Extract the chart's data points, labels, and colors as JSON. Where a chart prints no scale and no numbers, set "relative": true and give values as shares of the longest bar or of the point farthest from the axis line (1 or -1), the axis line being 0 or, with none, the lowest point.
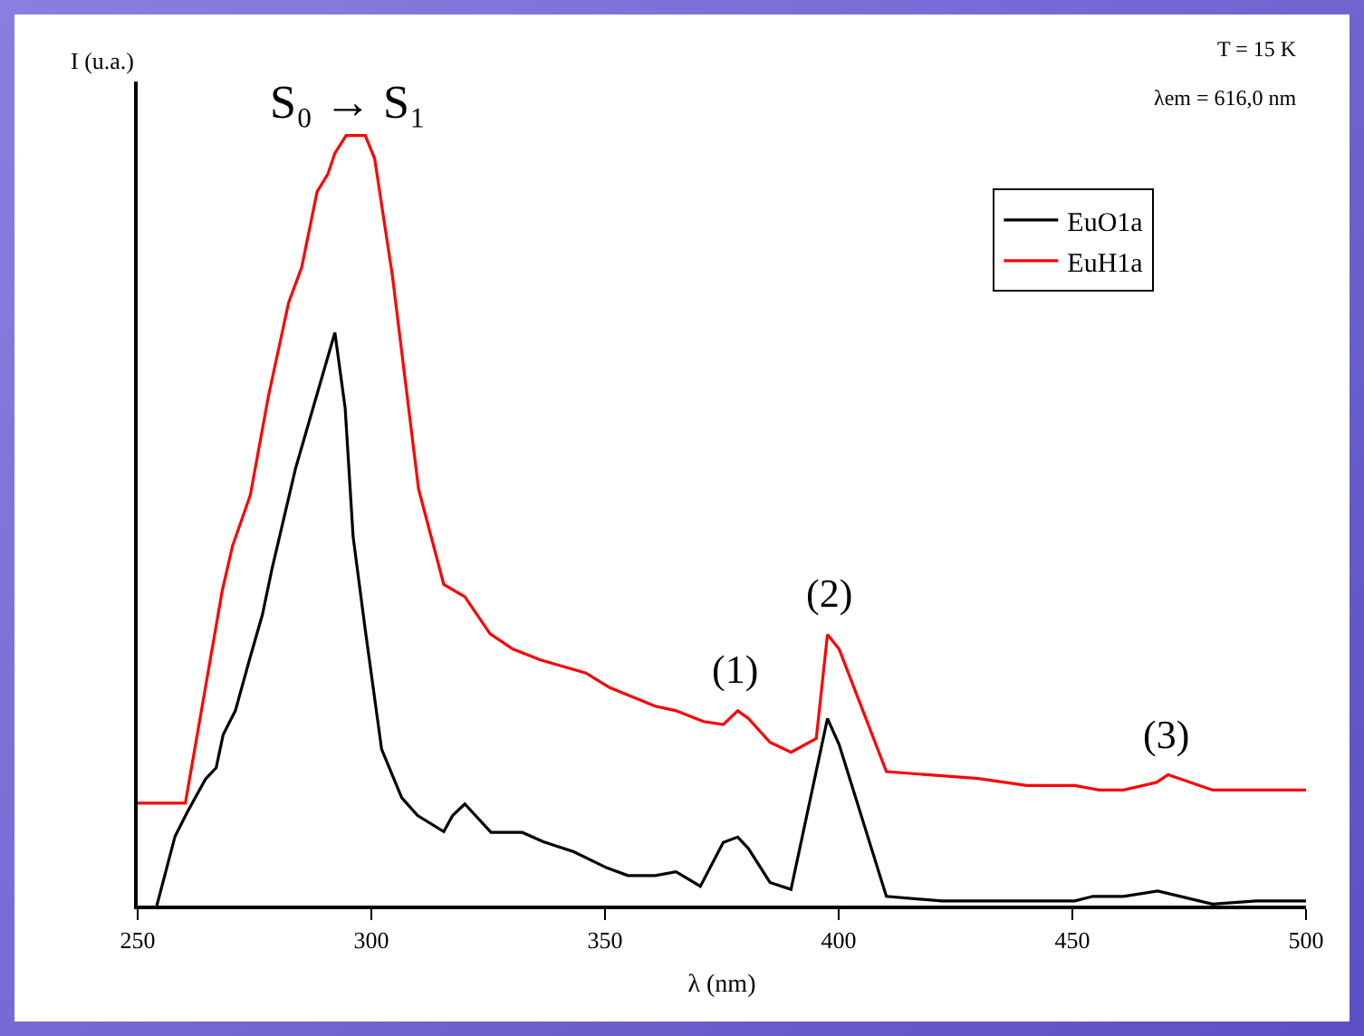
{
  "chart_data": {
    "type": "line",
    "relative": true,
    "xlabel": "λ (nm)",
    "ylabel": "I (u.a.)",
    "xlim": [
      250,
      500
    ],
    "xticks": [
      250,
      300,
      350,
      400,
      450,
      500
    ],
    "legend": "top right",
    "grid": false,
    "marker": "none",
    "line_style": "solid",
    "annotations": [
      {
        "text": "S₀ → S₁",
        "x": 295,
        "y": 1.0
      },
      {
        "text": "(1)",
        "x": 378,
        "y": 0.253
      },
      {
        "text": "(2)",
        "x": 398,
        "y": 0.352
      },
      {
        "text": "(3)",
        "x": 470,
        "y": 0.17
      },
      "T = 15 K",
      "λem = 616,0 nm"
    ],
    "series": [
      {
        "name": "EuO1a",
        "color": "#000000",
        "x": [
          254.1,
          258,
          260.6,
          264.5,
          266.8,
          268.3,
          270.9,
          274.1,
          276.7,
          278.7,
          283.8,
          292.2,
          294.4,
          296.1,
          298.7,
          302.2,
          306.5,
          309.9,
          315.5,
          317.4,
          320,
          325.6,
          332.3,
          336.8,
          343.3,
          350.4,
          354.9,
          360.7,
          365.2,
          370.4,
          375.3,
          378.4,
          380.7,
          385.3,
          389.8,
          397.6,
          400.1,
          410.2,
          422.1,
          450.5,
          454.4,
          460.9,
          468.3,
          480,
          489.3,
          500
        ],
        "values": [
          0,
          0.09,
          0.121,
          0.164,
          0.179,
          0.222,
          0.253,
          0.323,
          0.378,
          0.436,
          0.568,
          0.744,
          0.646,
          0.479,
          0.358,
          0.203,
          0.14,
          0.117,
          0.096,
          0.117,
          0.132,
          0.095,
          0.095,
          0.083,
          0.07,
          0.049,
          0.039,
          0.039,
          0.044,
          0.025,
          0.082,
          0.089,
          0.074,
          0.03,
          0.021,
          0.243,
          0.209,
          0.012,
          0.006,
          0.006,
          0.012,
          0.012,
          0.019,
          0.002,
          0.006,
          0.006
        ]
      },
      {
        "name": "EuH1a",
        "color": "#ff0000",
        "x": [
          250,
          260.2,
          268.1,
          270.3,
          274.1,
          278,
          282.3,
          285.1,
          288.4,
          290.7,
          292.2,
          294.6,
          298.7,
          300.7,
          304.5,
          310.1,
          315.5,
          320,
          325.4,
          330.3,
          336.2,
          345.9,
          351,
          360.7,
          365.2,
          371.1,
          375.3,
          378.4,
          380.7,
          385.3,
          389.8,
          395.2,
          397.6,
          400.1,
          410.2,
          429.8,
          440.2,
          450.5,
          455.7,
          460.9,
          468,
          470.5,
          480,
          500
        ],
        "values": [
          0.133,
          0.133,
          0.409,
          0.467,
          0.533,
          0.662,
          0.783,
          0.829,
          0.927,
          0.95,
          0.977,
          1.0,
          1.0,
          0.97,
          0.818,
          0.541,
          0.417,
          0.401,
          0.353,
          0.333,
          0.319,
          0.302,
          0.283,
          0.259,
          0.253,
          0.239,
          0.235,
          0.253,
          0.243,
          0.212,
          0.199,
          0.217,
          0.352,
          0.333,
          0.174,
          0.165,
          0.156,
          0.156,
          0.15,
          0.15,
          0.16,
          0.17,
          0.15,
          0.15
        ]
      }
    ]
  }
}
